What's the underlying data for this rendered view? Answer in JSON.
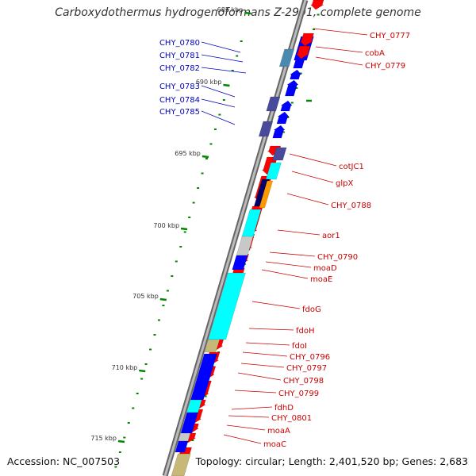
{
  "title": "Carboxydothermus hydrogenoformans Z-2901, complete genome",
  "accession_text": "Accession: NC_007503",
  "summary_text": "Topology: circular; Length: 2,401,520 bp; Genes: 2,683",
  "colors": {
    "forward_arrow": "#ff0000",
    "reverse_arrow": "#0000ff",
    "forward_label": "#cc0000",
    "reverse_label": "#0000bb",
    "backbone": "#888888",
    "tick": "#008800",
    "cyan": "#00ffff",
    "navy": "#4a4a9a",
    "steel": "#4a8ab0",
    "gray": "#c8c8c8",
    "khaki": "#c8b878",
    "orange": "#ff9900"
  },
  "scale_labels": [
    "685 kbp",
    "690 kbp",
    "695 kbp",
    "700 kbp",
    "705 kbp",
    "710 kbp",
    "715 kbp"
  ],
  "reverse_labels": [
    "CHY_0780",
    "CHY_0781",
    "CHY_0782",
    "CHY_0783",
    "CHY_0784",
    "CHY_0785"
  ],
  "forward_labels": [
    "CHY_0777",
    "cobA",
    "CHY_0779",
    "cotJC1",
    "glpX",
    "CHY_0788",
    "aor1",
    "CHY_0790",
    "moaD",
    "moaE",
    "fdoG",
    "fdoH",
    "fdoI",
    "CHY_0796",
    "CHY_0797",
    "CHY_0798",
    "CHY_0799",
    "fdhD",
    "CHY_0801",
    "moaA",
    "moaC"
  ]
}
